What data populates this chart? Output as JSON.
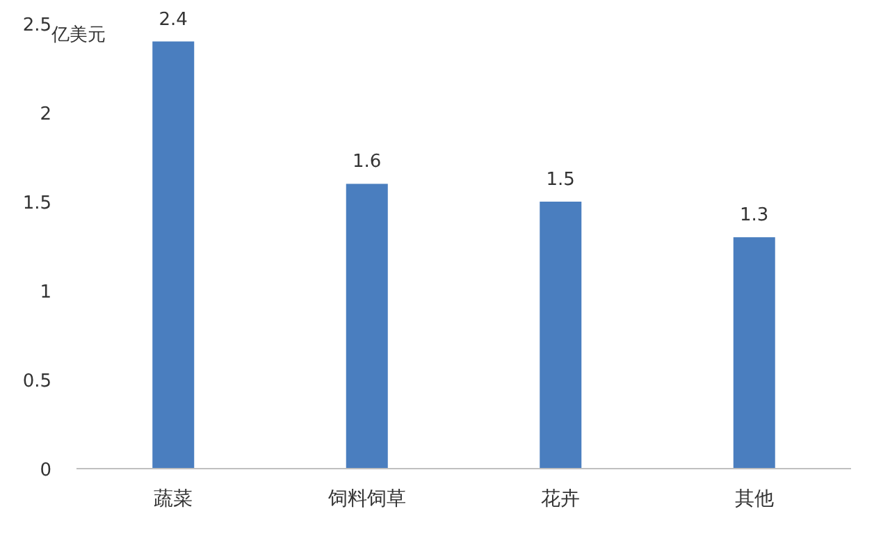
{
  "chart_data": {
    "type": "bar",
    "ylabel": "亿美元",
    "categories": [
      "蔬菜",
      "饲料饲草",
      "花卉",
      "其他"
    ],
    "values": [
      2.4,
      1.6,
      1.5,
      1.3
    ],
    "color": "#4a7ebf",
    "ylim": [
      0,
      2.5
    ],
    "yticks": [
      0,
      0.5,
      1,
      1.5,
      2,
      2.5
    ],
    "data_labels": true
  }
}
